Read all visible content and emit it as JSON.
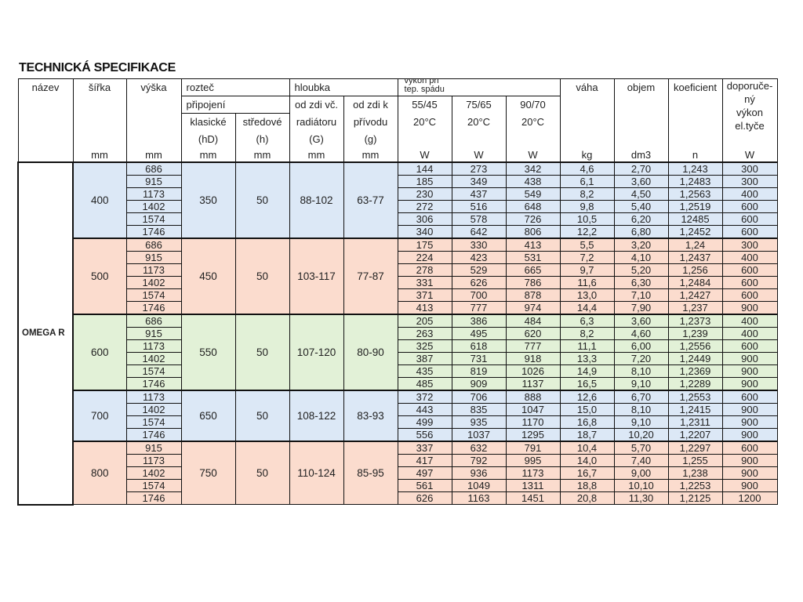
{
  "title": "TECHNICKÁ SPECIFIKACE",
  "product_name": "OMEGA R",
  "colors": {
    "blue": "#dce8f6",
    "salmon": "#fbdcce",
    "green": "#e2f1d7",
    "border": "#111111"
  },
  "header": {
    "nazev": "název",
    "sirka": "šířka",
    "vyska": "výška",
    "roztec": "rozteč",
    "pripojeni": "připojení",
    "klasicke": [
      "klasické",
      "(hD)"
    ],
    "stredove": [
      "středové",
      "(h)"
    ],
    "hloubka": "hloubka",
    "od_zdi_vc": [
      "od zdi vč.",
      "radiátoru",
      "(G)"
    ],
    "od_zdi_k": [
      "od zdi k",
      "přívodu",
      "(g)"
    ],
    "vykon": [
      "výkon při",
      "tep. spádu"
    ],
    "t1": [
      "55/45",
      "20°C"
    ],
    "t2": [
      "75/65",
      "20°C"
    ],
    "t3": [
      "90/70",
      "20°C"
    ],
    "vaha": "váha",
    "objem": "objem",
    "koeficient": "koeficient",
    "doporuceny": [
      "doporuče-",
      "ný",
      "výkon",
      "el.tyče"
    ],
    "units": [
      "",
      "mm",
      "mm",
      "mm",
      "mm",
      "mm",
      "mm",
      "W",
      "W",
      "W",
      "kg",
      "dm3",
      "n",
      "W"
    ]
  },
  "groups": [
    {
      "sirka": "400",
      "hD": "350",
      "h": "50",
      "G": "88-102",
      "g": "63-77",
      "color": "blue",
      "rows": [
        [
          "686",
          "144",
          "273",
          "342",
          "4,6",
          "2,70",
          "1,243",
          "300"
        ],
        [
          "915",
          "185",
          "349",
          "438",
          "6,1",
          "3,60",
          "1,2483",
          "300"
        ],
        [
          "1173",
          "230",
          "437",
          "549",
          "8,2",
          "4,50",
          "1,2563",
          "400"
        ],
        [
          "1402",
          "272",
          "516",
          "648",
          "9,8",
          "5,40",
          "1,2519",
          "600"
        ],
        [
          "1574",
          "306",
          "578",
          "726",
          "10,5",
          "6,20",
          "12485",
          "600"
        ],
        [
          "1746",
          "340",
          "642",
          "806",
          "12,2",
          "6,80",
          "1,2452",
          "600"
        ]
      ]
    },
    {
      "sirka": "500",
      "hD": "450",
      "h": "50",
      "G": "103-117",
      "g": "77-87",
      "color": "salmon",
      "rows": [
        [
          "686",
          "175",
          "330",
          "413",
          "5,5",
          "3,20",
          "1,24",
          "300"
        ],
        [
          "915",
          "224",
          "423",
          "531",
          "7,2",
          "4,10",
          "1,2437",
          "400"
        ],
        [
          "1173",
          "278",
          "529",
          "665",
          "9,7",
          "5,20",
          "1,256",
          "600"
        ],
        [
          "1402",
          "331",
          "626",
          "786",
          "11,6",
          "6,30",
          "1,2484",
          "600"
        ],
        [
          "1574",
          "371",
          "700",
          "878",
          "13,0",
          "7,10",
          "1,2427",
          "600"
        ],
        [
          "1746",
          "413",
          "777",
          "974",
          "14,4",
          "7,90",
          "1,237",
          "900"
        ]
      ]
    },
    {
      "sirka": "600",
      "hD": "550",
      "h": "50",
      "G": "107-120",
      "g": "80-90",
      "color": "green",
      "rows": [
        [
          "686",
          "205",
          "386",
          "484",
          "6,3",
          "3,60",
          "1,2373",
          "400"
        ],
        [
          "915",
          "263",
          "495",
          "620",
          "8,2",
          "4,60",
          "1,239",
          "400"
        ],
        [
          "1173",
          "325",
          "618",
          "777",
          "11,1",
          "6,00",
          "1,2556",
          "600"
        ],
        [
          "1402",
          "387",
          "731",
          "918",
          "13,3",
          "7,20",
          "1,2449",
          "900"
        ],
        [
          "1574",
          "435",
          "819",
          "1026",
          "14,9",
          "8,10",
          "1,2369",
          "900"
        ],
        [
          "1746",
          "485",
          "909",
          "1137",
          "16,5",
          "9,10",
          "1,2289",
          "900"
        ]
      ]
    },
    {
      "sirka": "700",
      "hD": "650",
      "h": "50",
      "G": "108-122",
      "g": "83-93",
      "color": "blue",
      "rows": [
        [
          "1173",
          "372",
          "706",
          "888",
          "12,6",
          "6,70",
          "1,2553",
          "600"
        ],
        [
          "1402",
          "443",
          "835",
          "1047",
          "15,0",
          "8,10",
          "1,2415",
          "900"
        ],
        [
          "1574",
          "499",
          "935",
          "1170",
          "16,8",
          "9,10",
          "1,2311",
          "900"
        ],
        [
          "1746",
          "556",
          "1037",
          "1295",
          "18,7",
          "10,20",
          "1,2207",
          "900"
        ]
      ]
    },
    {
      "sirka": "800",
      "hD": "750",
      "h": "50",
      "G": "110-124",
      "g": "85-95",
      "color": "salmon",
      "rows": [
        [
          "915",
          "337",
          "632",
          "791",
          "10,4",
          "5,70",
          "1,2297",
          "600"
        ],
        [
          "1173",
          "417",
          "792",
          "995",
          "14,0",
          "7,40",
          "1,255",
          "900"
        ],
        [
          "1402",
          "497",
          "936",
          "1173",
          "16,7",
          "9,00",
          "1,238",
          "900"
        ],
        [
          "1574",
          "561",
          "1049",
          "1311",
          "18,8",
          "10,10",
          "1,2253",
          "900"
        ],
        [
          "1746",
          "626",
          "1163",
          "1451",
          "20,8",
          "11,30",
          "1,2125",
          "1200"
        ]
      ]
    }
  ]
}
